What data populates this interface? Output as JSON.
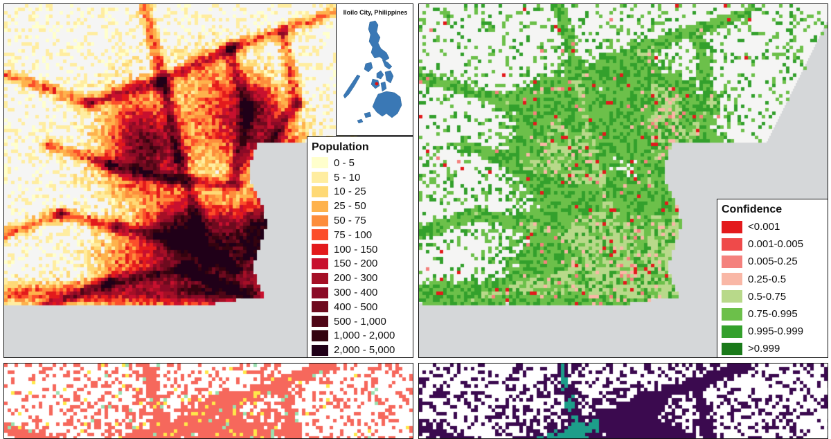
{
  "population_map": {
    "inset_title": "Iloilo City, Philippines",
    "legend": {
      "title": "Population",
      "items": [
        {
          "label": "0 - 5",
          "color": "#ffffcc"
        },
        {
          "label": "5 - 10",
          "color": "#ffeda0"
        },
        {
          "label": "10 - 25",
          "color": "#fed976"
        },
        {
          "label": "25 - 50",
          "color": "#feb24c"
        },
        {
          "label": "50 - 75",
          "color": "#fd8d3c"
        },
        {
          "label": "75 - 100",
          "color": "#fc4e2a"
        },
        {
          "label": "100 - 150",
          "color": "#e31a1c"
        },
        {
          "label": "150 - 200",
          "color": "#c8102e"
        },
        {
          "label": "200 - 300",
          "color": "#a50f26"
        },
        {
          "label": "300 - 400",
          "color": "#8b0a26"
        },
        {
          "label": "400 - 500",
          "color": "#6e0a1e"
        },
        {
          "label": "500 - 1,000",
          "color": "#4f0616"
        },
        {
          "label": "1,000 - 2,000",
          "color": "#33030f"
        },
        {
          "label": "2,000 - 5,000",
          "color": "#200018"
        }
      ]
    }
  },
  "confidence_map": {
    "legend": {
      "title": "Confidence",
      "items": [
        {
          "label": "<0.001",
          "color": "#e31a1c"
        },
        {
          "label": "0.001-0.005",
          "color": "#ef4a4a"
        },
        {
          "label": "0.005-0.25",
          "color": "#f4817d"
        },
        {
          "label": "0.25-0.5",
          "color": "#f9b7a6"
        },
        {
          "label": "0.5-0.75",
          "color": "#b8d98a"
        },
        {
          "label": "0.75-0.995",
          "color": "#6cc04a"
        },
        {
          "label": "0.995-0.999",
          "color": "#33a02c"
        },
        {
          "label": ">0.999",
          "color": "#1a7a1a"
        }
      ]
    }
  },
  "basemap": {
    "land_color": "#f5f5f4",
    "water_color": "#d5d7d9"
  },
  "bottom_left_colors": [
    "#f6685c",
    "#ffe84a",
    "#9be0b0"
  ],
  "bottom_right_colors": [
    "#3b0a4f",
    "#1d9e8a"
  ]
}
